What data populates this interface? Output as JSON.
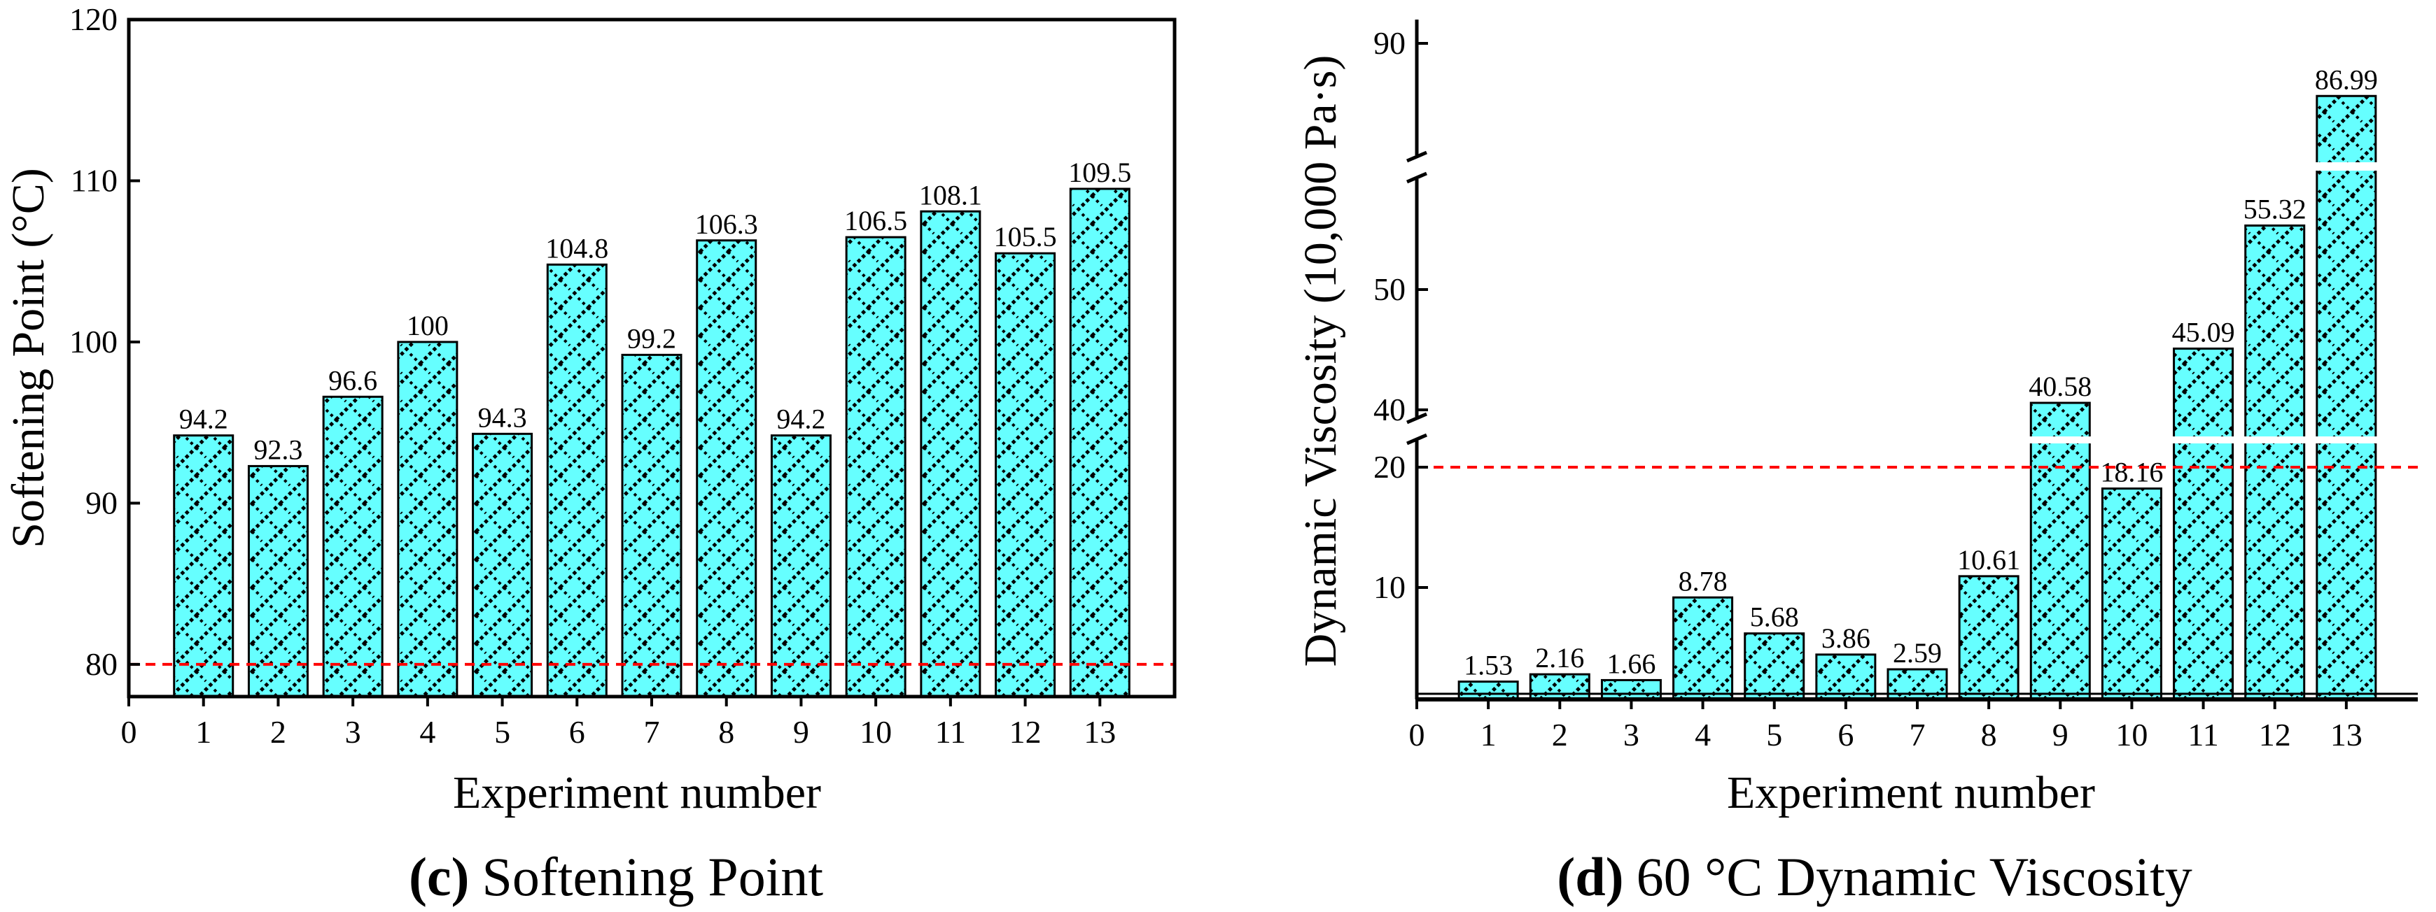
{
  "chart_data": [
    {
      "type": "bar",
      "title_prefix": "(c)",
      "title_rest": "Softening Point",
      "xlabel": "Experiment number",
      "ylabel": "Softening Point (°C)",
      "x_ticks": [
        "0",
        "1",
        "2",
        "3",
        "4",
        "5",
        "6",
        "7",
        "8",
        "9",
        "10",
        "11",
        "12",
        "13"
      ],
      "y_ticks": [
        "80",
        "90",
        "100",
        "110",
        "120"
      ],
      "ylim": [
        78,
        120
      ],
      "xlim": [
        0,
        14
      ],
      "grid": false,
      "categories": [
        1,
        2,
        3,
        4,
        5,
        6,
        7,
        8,
        9,
        10,
        11,
        12,
        13
      ],
      "values": [
        94.2,
        92.3,
        96.6,
        100,
        94.3,
        104.8,
        99.2,
        106.3,
        94.2,
        106.5,
        108.1,
        105.5,
        109.5
      ],
      "labels": [
        "94.2",
        "92.3",
        "96.6",
        "100",
        "94.3",
        "104.8",
        "99.2",
        "106.3",
        "94.2",
        "106.5",
        "108.1",
        "105.5",
        "109.5"
      ],
      "reference_line": 80,
      "bar_color": "#66ffff",
      "pattern_color": "#000000",
      "reference_color": "#ff0000"
    },
    {
      "type": "bar",
      "title_prefix": "(d)",
      "title_rest": "60 °C Dynamic Viscosity",
      "xlabel": "Experiment number",
      "ylabel": "Dynamic Viscosity (10,000 Pa·s)",
      "x_ticks": [
        "0",
        "1",
        "2",
        "3",
        "4",
        "5",
        "6",
        "7",
        "8",
        "9",
        "10",
        "11",
        "12",
        "13"
      ],
      "y_ticks": [
        "10",
        "20",
        "40",
        "50",
        "90"
      ],
      "axis_breaks": [
        [
          22,
          38
        ],
        [
          57,
          88
        ]
      ],
      "ylim": [
        0,
        92
      ],
      "xlim": [
        0,
        14
      ],
      "grid": false,
      "categories": [
        1,
        2,
        3,
        4,
        5,
        6,
        7,
        8,
        9,
        10,
        11,
        12,
        13
      ],
      "values": [
        1.53,
        2.16,
        1.66,
        8.78,
        5.68,
        3.86,
        2.59,
        10.61,
        40.58,
        18.16,
        45.09,
        55.32,
        86.99
      ],
      "labels": [
        "1.53",
        "2.16",
        "1.66",
        "8.78",
        "5.68",
        "3.86",
        "2.59",
        "10.61",
        "40.58",
        "18.16",
        "45.09",
        "55.32",
        "86.99"
      ],
      "reference_line": 20,
      "bar_color": "#66ffff",
      "pattern_color": "#000000",
      "reference_color": "#ff0000"
    }
  ]
}
